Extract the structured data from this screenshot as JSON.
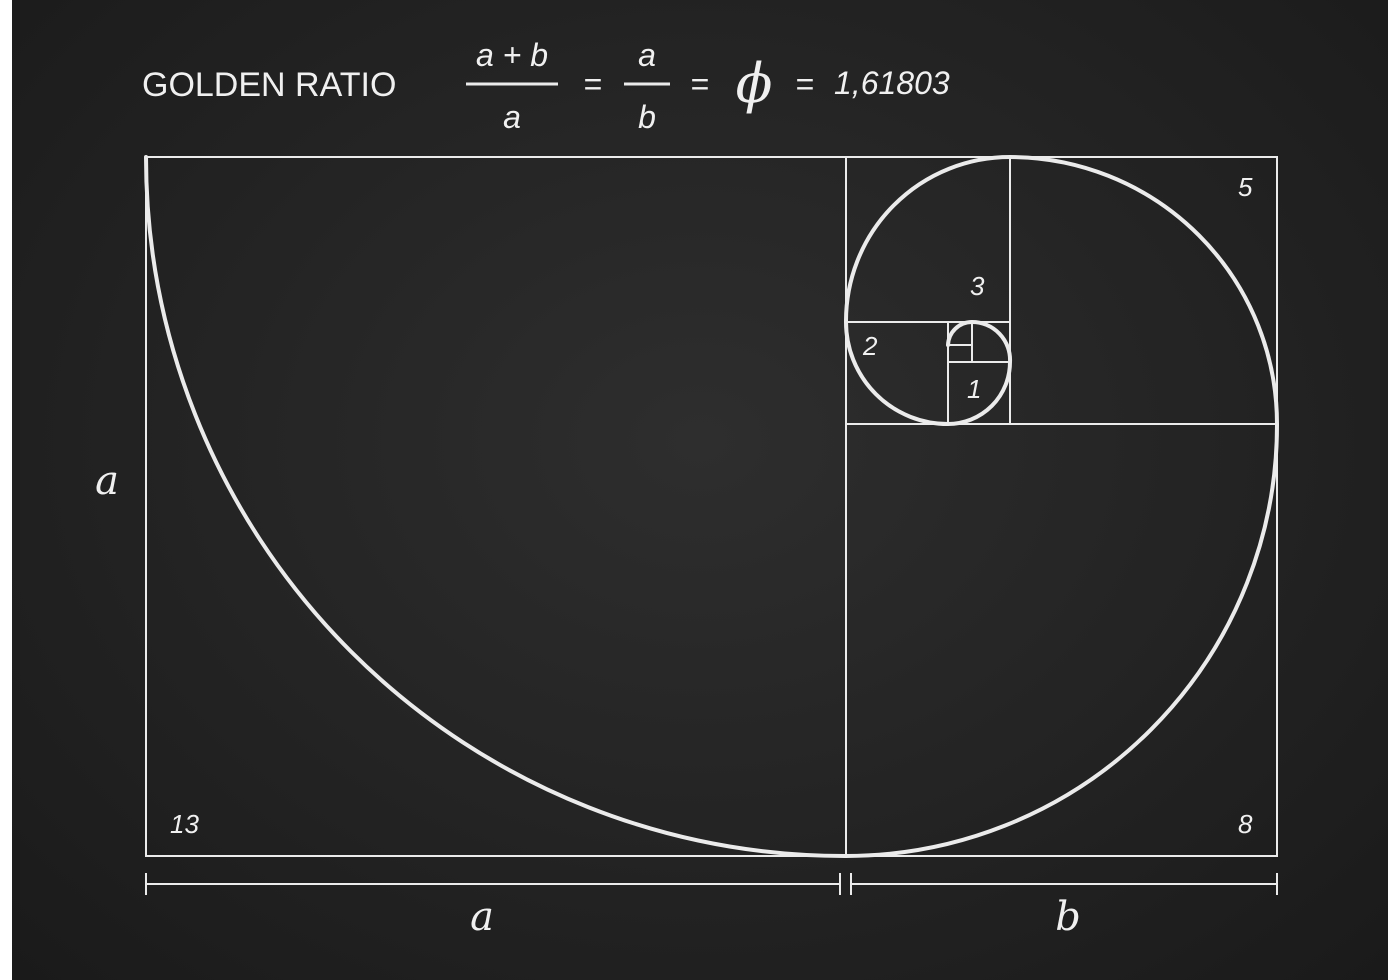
{
  "title": "GOLDEN RATIO",
  "formula": {
    "frac1_num": "a + b",
    "frac1_den": "a",
    "eq1": "=",
    "frac2_num": "a",
    "frac2_den": "b",
    "eq2": "=",
    "phi": "ϕ",
    "eq3": "=",
    "value": "1,61803"
  },
  "squares": [
    {
      "label": "13"
    },
    {
      "label": "8"
    },
    {
      "label": "5"
    },
    {
      "label": "3"
    },
    {
      "label": "2"
    },
    {
      "label": "1"
    }
  ],
  "dimensions": {
    "height_label": "a",
    "bottom_a": "a",
    "bottom_b": "b"
  },
  "colors": {
    "line": "#ebebeb",
    "background": "#262626"
  }
}
